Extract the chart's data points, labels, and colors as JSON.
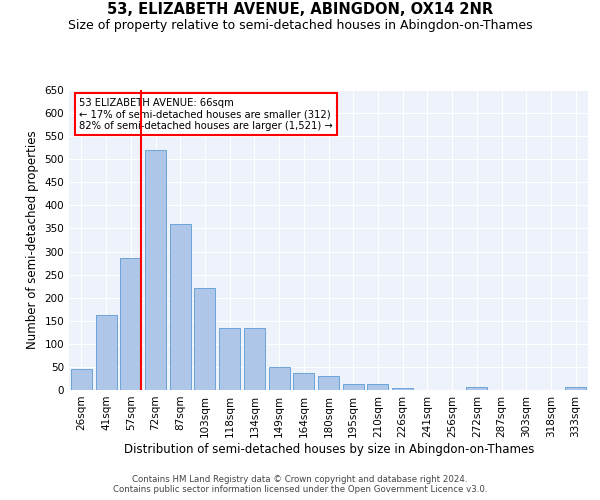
{
  "title": "53, ELIZABETH AVENUE, ABINGDON, OX14 2NR",
  "subtitle": "Size of property relative to semi-detached houses in Abingdon-on-Thames",
  "xlabel": "Distribution of semi-detached houses by size in Abingdon-on-Thames",
  "ylabel": "Number of semi-detached properties",
  "footer_line1": "Contains HM Land Registry data © Crown copyright and database right 2024.",
  "footer_line2": "Contains public sector information licensed under the Open Government Licence v3.0.",
  "categories": [
    "26sqm",
    "41sqm",
    "57sqm",
    "72sqm",
    "87sqm",
    "103sqm",
    "118sqm",
    "134sqm",
    "149sqm",
    "164sqm",
    "180sqm",
    "195sqm",
    "210sqm",
    "226sqm",
    "241sqm",
    "256sqm",
    "272sqm",
    "287sqm",
    "303sqm",
    "318sqm",
    "333sqm"
  ],
  "values": [
    45,
    162,
    285,
    520,
    360,
    222,
    135,
    135,
    50,
    36,
    30,
    12,
    12,
    5,
    0,
    0,
    6,
    0,
    0,
    0,
    6
  ],
  "bar_color": "#aec6e8",
  "bar_edge_color": "#5b9bd5",
  "vline_color": "red",
  "vline_pos": 2.43,
  "annotation_text": "53 ELIZABETH AVENUE: 66sqm\n← 17% of semi-detached houses are smaller (312)\n82% of semi-detached houses are larger (1,521) →",
  "annotation_box_color": "white",
  "annotation_box_edge_color": "red",
  "ylim": [
    0,
    650
  ],
  "yticks": [
    0,
    50,
    100,
    150,
    200,
    250,
    300,
    350,
    400,
    450,
    500,
    550,
    600,
    650
  ],
  "background_color": "#eef2fa",
  "grid_color": "white",
  "title_fontsize": 10.5,
  "subtitle_fontsize": 9,
  "label_fontsize": 8.5,
  "tick_fontsize": 7.5,
  "footer_fontsize": 6.2
}
